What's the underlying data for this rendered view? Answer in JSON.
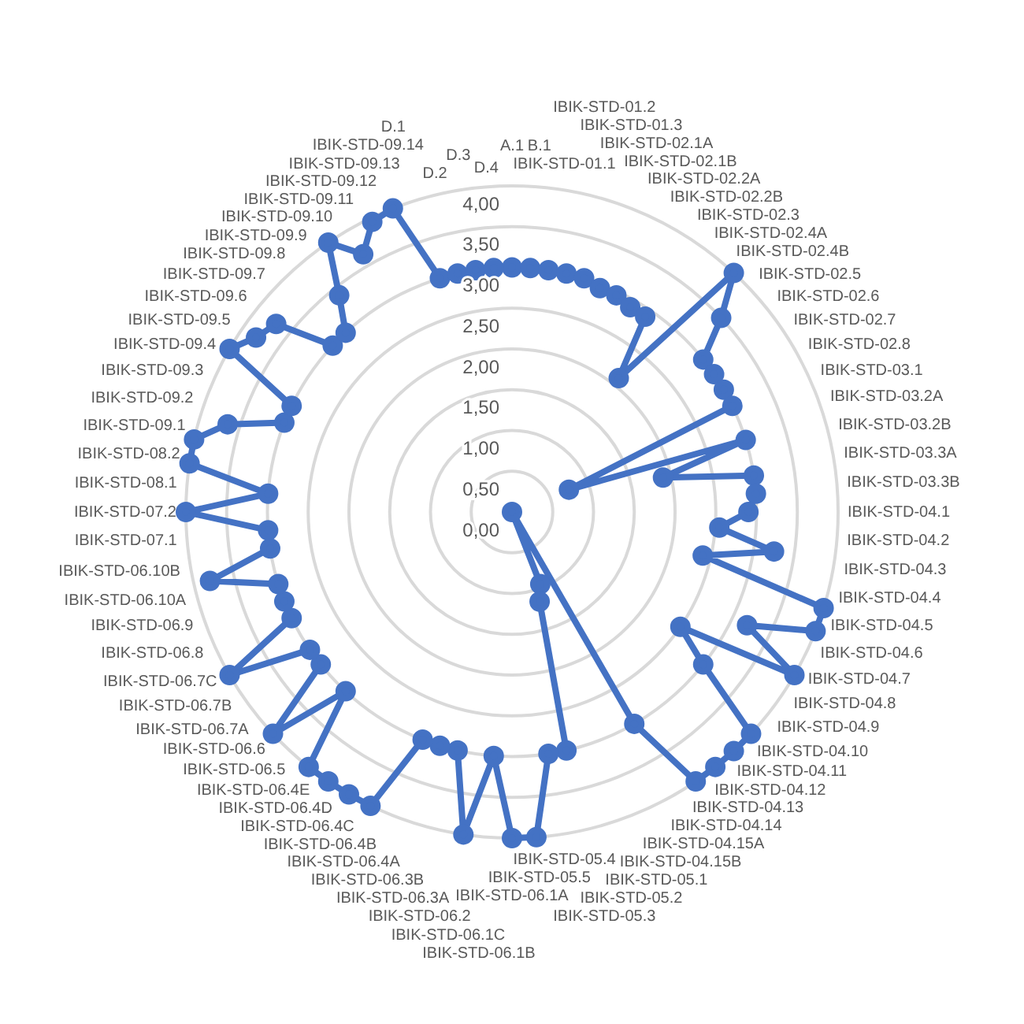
{
  "chart_data": {
    "type": "radar",
    "categories": [
      "A.1",
      "B.1",
      "IBIK-STD-01.1",
      "IBIK-STD-01.2",
      "IBIK-STD-01.3",
      "IBIK-STD-02.1A",
      "IBIK-STD-02.1B",
      "IBIK-STD-02.2A",
      "IBIK-STD-02.2B",
      "IBIK-STD-02.3",
      "IBIK-STD-02.4A",
      "IBIK-STD-02.4B",
      "IBIK-STD-02.5",
      "IBIK-STD-02.6",
      "IBIK-STD-02.7",
      "IBIK-STD-02.8",
      "IBIK-STD-03.1",
      "IBIK-STD-03.2A",
      "IBIK-STD-03.2B",
      "IBIK-STD-03.3A",
      "IBIK-STD-03.3B",
      "IBIK-STD-04.1",
      "IBIK-STD-04.2",
      "IBIK-STD-04.3",
      "IBIK-STD-04.4",
      "IBIK-STD-04.5",
      "IBIK-STD-04.6",
      "IBIK-STD-04.7",
      "IBIK-STD-04.8",
      "IBIK-STD-04.9",
      "IBIK-STD-04.10",
      "IBIK-STD-04.11",
      "IBIK-STD-04.12",
      "IBIK-STD-04.13",
      "IBIK-STD-04.14",
      "IBIK-STD-04.15A",
      "IBIK-STD-04.15B",
      "IBIK-STD-05.1",
      "IBIK-STD-05.2",
      "IBIK-STD-05.3",
      "IBIK-STD-05.4",
      "IBIK-STD-05.5",
      "IBIK-STD-06.1A",
      "IBIK-STD-06.1B",
      "IBIK-STD-06.1C",
      "IBIK-STD-06.2",
      "IBIK-STD-06.3A",
      "IBIK-STD-06.3B",
      "IBIK-STD-06.4A",
      "IBIK-STD-06.4B",
      "IBIK-STD-06.4C",
      "IBIK-STD-06.4D",
      "IBIK-STD-06.4E",
      "IBIK-STD-06.5",
      "IBIK-STD-06.6",
      "IBIK-STD-06.7A",
      "IBIK-STD-06.7B",
      "IBIK-STD-06.7C",
      "IBIK-STD-06.8",
      "IBIK-STD-06.9",
      "IBIK-STD-06.10A",
      "IBIK-STD-06.10B",
      "IBIK-STD-07.1",
      "IBIK-STD-07.2",
      "IBIK-STD-08.1",
      "IBIK-STD-08.2",
      "IBIK-STD-09.1",
      "IBIK-STD-09.2",
      "IBIK-STD-09.3",
      "IBIK-STD-09.4",
      "IBIK-STD-09.5",
      "IBIK-STD-09.6",
      "IBIK-STD-09.7",
      "IBIK-STD-09.8",
      "IBIK-STD-09.9",
      "IBIK-STD-09.10",
      "IBIK-STD-09.11",
      "IBIK-STD-09.12",
      "IBIK-STD-09.13",
      "IBIK-STD-09.14",
      "D.1",
      "D.2",
      "D.3",
      "D.4"
    ],
    "series": [
      {
        "color": "#4472c4",
        "values": [
          3.0,
          3.0,
          3.0,
          3.0,
          3.0,
          2.95,
          2.95,
          2.9,
          2.9,
          2.1,
          4.0,
          3.5,
          3.0,
          3.0,
          3.0,
          3.0,
          0.75,
          3.0,
          1.9,
          3.0,
          3.0,
          2.9,
          2.55,
          3.25,
          2.4,
          4.0,
          4.0,
          3.2,
          4.0,
          2.5,
          3.0,
          4.0,
          4.0,
          4.0,
          4.0,
          3.0,
          0,
          0.95,
          1.15,
          3.0,
          3.0,
          4.0,
          4.0,
          3.0,
          4.0,
          3.0,
          3.0,
          3.0,
          4.0,
          4.0,
          4.0,
          4.0,
          3.0,
          4.0,
          3.0,
          3.0,
          4.0,
          3.0,
          3.0,
          3.0,
          3.8,
          3.0,
          3.0,
          4.0,
          3.0,
          4.0,
          4.0,
          3.65,
          3.0,
          3.0,
          4.0,
          3.8,
          3.7,
          3.0,
          3.0,
          3.4,
          4.0,
          3.65,
          3.95,
          4.0,
          3.0,
          3.0,
          3.0,
          3.0
        ]
      }
    ],
    "ylim": [
      0,
      4
    ],
    "yticks": [
      {
        "value": 0,
        "label": "0,00"
      },
      {
        "value": 0.5,
        "label": "0,50"
      },
      {
        "value": 1,
        "label": "1,00"
      },
      {
        "value": 1.5,
        "label": "1,50"
      },
      {
        "value": 2,
        "label": "2,00"
      },
      {
        "value": 2.5,
        "label": "2,50"
      },
      {
        "value": 3,
        "label": "3,00"
      },
      {
        "value": 3.5,
        "label": "3,50"
      },
      {
        "value": 4,
        "label": "4,00"
      }
    ],
    "grid": true,
    "marker": "circle",
    "line_style": "solid"
  }
}
